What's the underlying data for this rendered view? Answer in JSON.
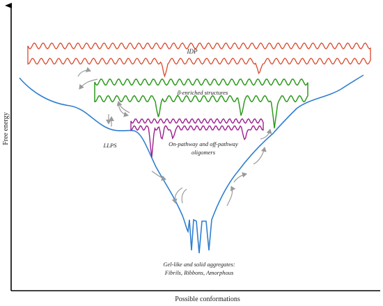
{
  "axes": {
    "ylabel": "Free energy",
    "xlabel": "Possible conformations"
  },
  "labels": {
    "idp": "IDP",
    "beta": "β-enriched structures",
    "oligomers_line1": "On-pathway and off-pathway",
    "oligomers_line2": "oligomers",
    "llps": "LLPS",
    "aggregates_line1": "Gel-like and solid aggregates:",
    "aggregates_line2": "Fibrils, Ribbons, Amorphous"
  },
  "colors": {
    "idp": "#d9482b",
    "beta": "#2e9a1e",
    "oligomers": "#9b1f8f",
    "landscape": "#2f7fd0",
    "arrows": "#9a9a9a",
    "axis": "#000000"
  }
}
